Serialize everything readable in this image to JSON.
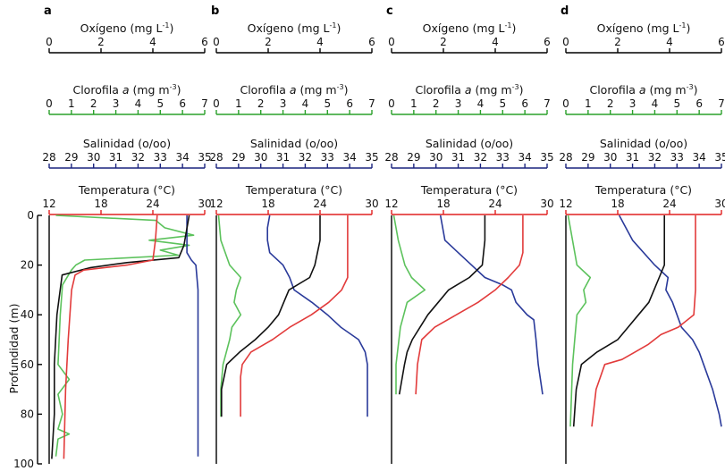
{
  "chart_data": {
    "type": "line",
    "depth_axis": {
      "label": "Profundidad (m)",
      "range": [
        0,
        100
      ],
      "ticks": [
        0,
        20,
        40,
        60,
        80,
        100
      ],
      "inverted": true
    },
    "axes": [
      {
        "key": "oxygen",
        "label": "Oxígeno (mg  L",
        "label_sup": "-1",
        "label_tail": ")",
        "range": [
          0,
          6
        ],
        "ticks": [
          0,
          2,
          4,
          6
        ],
        "color": "#000000"
      },
      {
        "key": "chlorophyll",
        "label": "Clorofila ",
        "label_italic": "a",
        "label_mid": " (mg  m",
        "label_sup": "-3",
        "label_tail": ")",
        "range": [
          0,
          7
        ],
        "ticks": [
          0,
          1,
          2,
          3,
          4,
          5,
          6,
          7
        ],
        "color": "#2aa02a"
      },
      {
        "key": "salinity",
        "label": "Salinidad (o/oo)",
        "range": [
          28,
          35
        ],
        "ticks": [
          28,
          29,
          30,
          31,
          32,
          33,
          34,
          35
        ],
        "color": "#1a237e"
      },
      {
        "key": "temperature",
        "label": "Temperatura (°C)",
        "range": [
          12,
          30
        ],
        "ticks": [
          12,
          18,
          24,
          30
        ],
        "color": "#e02020"
      }
    ],
    "series_colors": {
      "temperature": "#e23b3b",
      "chlorophyll": "#5cc25c",
      "salinity": "#2a3a9a",
      "oxygen": "#111111"
    },
    "panels": [
      {
        "letter": "a",
        "temperature": [
          [
            0,
            24.5
          ],
          [
            10,
            24.3
          ],
          [
            18,
            24.0
          ],
          [
            20,
            21
          ],
          [
            22,
            16
          ],
          [
            24,
            15
          ],
          [
            30,
            14.6
          ],
          [
            50,
            14.2
          ],
          [
            70,
            13.9
          ],
          [
            98,
            13.7
          ]
        ],
        "salinity": [
          [
            0,
            34.2
          ],
          [
            15,
            34.2
          ],
          [
            18,
            34.4
          ],
          [
            20,
            34.6
          ],
          [
            30,
            34.7
          ],
          [
            60,
            34.7
          ],
          [
            97,
            34.7
          ]
        ],
        "chlorophyll": [
          [
            0,
            0.3
          ],
          [
            2,
            4.8
          ],
          [
            5,
            5.2
          ],
          [
            8,
            6.5
          ],
          [
            10,
            4.5
          ],
          [
            12,
            6.3
          ],
          [
            14,
            5.0
          ],
          [
            16,
            5.8
          ],
          [
            18,
            1.6
          ],
          [
            20,
            1.2
          ],
          [
            22,
            1.0
          ],
          [
            28,
            0.6
          ],
          [
            40,
            0.5
          ],
          [
            60,
            0.4
          ],
          [
            66,
            0.9
          ],
          [
            72,
            0.4
          ],
          [
            80,
            0.6
          ],
          [
            86,
            0.4
          ],
          [
            88,
            0.9
          ],
          [
            90,
            0.4
          ],
          [
            97,
            0.3
          ]
        ],
        "oxygen": [
          [
            0,
            5.4
          ],
          [
            12,
            5.2
          ],
          [
            17,
            5.0
          ],
          [
            19,
            3.0
          ],
          [
            21,
            1.6
          ],
          [
            24,
            0.5
          ],
          [
            40,
            0.3
          ],
          [
            60,
            0.2
          ],
          [
            80,
            0.2
          ],
          [
            98,
            0.1
          ]
        ]
      },
      {
        "letter": "b",
        "temperature": [
          [
            0,
            27.2
          ],
          [
            25,
            27.2
          ],
          [
            30,
            26.5
          ],
          [
            35,
            25.0
          ],
          [
            40,
            23.0
          ],
          [
            45,
            20.5
          ],
          [
            50,
            18.5
          ],
          [
            55,
            16.0
          ],
          [
            60,
            15.0
          ],
          [
            65,
            14.8
          ],
          [
            81,
            14.8
          ]
        ],
        "salinity": [
          [
            0,
            30.4
          ],
          [
            5,
            30.3
          ],
          [
            10,
            30.3
          ],
          [
            15,
            30.4
          ],
          [
            20,
            31.0
          ],
          [
            25,
            31.3
          ],
          [
            30,
            31.5
          ],
          [
            35,
            32.3
          ],
          [
            40,
            33.0
          ],
          [
            45,
            33.6
          ],
          [
            50,
            34.4
          ],
          [
            55,
            34.7
          ],
          [
            60,
            34.8
          ],
          [
            81,
            34.8
          ]
        ],
        "chlorophyll": [
          [
            0,
            0.1
          ],
          [
            10,
            0.2
          ],
          [
            20,
            0.6
          ],
          [
            25,
            1.1
          ],
          [
            30,
            0.9
          ],
          [
            35,
            0.8
          ],
          [
            40,
            1.1
          ],
          [
            45,
            0.7
          ],
          [
            50,
            0.6
          ],
          [
            60,
            0.3
          ],
          [
            70,
            0.2
          ],
          [
            81,
            0.2
          ]
        ],
        "oxygen": [
          [
            0,
            4.0
          ],
          [
            10,
            4.0
          ],
          [
            20,
            3.8
          ],
          [
            25,
            3.6
          ],
          [
            30,
            2.8
          ],
          [
            35,
            2.6
          ],
          [
            40,
            2.4
          ],
          [
            45,
            2.0
          ],
          [
            50,
            1.5
          ],
          [
            55,
            0.9
          ],
          [
            60,
            0.4
          ],
          [
            70,
            0.2
          ],
          [
            81,
            0.2
          ]
        ]
      },
      {
        "letter": "c",
        "temperature": [
          [
            0,
            27.2
          ],
          [
            15,
            27.2
          ],
          [
            20,
            26.8
          ],
          [
            25,
            25.5
          ],
          [
            30,
            24.0
          ],
          [
            35,
            22.0
          ],
          [
            40,
            19.5
          ],
          [
            45,
            17.0
          ],
          [
            50,
            15.5
          ],
          [
            60,
            15.0
          ],
          [
            72,
            14.8
          ]
        ],
        "salinity": [
          [
            0,
            30.2
          ],
          [
            10,
            30.4
          ],
          [
            20,
            31.6
          ],
          [
            25,
            32.2
          ],
          [
            28,
            33.0
          ],
          [
            30,
            33.4
          ],
          [
            35,
            33.6
          ],
          [
            40,
            34.1
          ],
          [
            42,
            34.4
          ],
          [
            50,
            34.5
          ],
          [
            60,
            34.6
          ],
          [
            72,
            34.8
          ]
        ],
        "chlorophyll": [
          [
            0,
            0.1
          ],
          [
            10,
            0.3
          ],
          [
            20,
            0.6
          ],
          [
            25,
            0.9
          ],
          [
            30,
            1.5
          ],
          [
            35,
            0.7
          ],
          [
            45,
            0.4
          ],
          [
            60,
            0.2
          ],
          [
            72,
            0.2
          ]
        ],
        "oxygen": [
          [
            0,
            3.6
          ],
          [
            10,
            3.6
          ],
          [
            20,
            3.5
          ],
          [
            25,
            3.0
          ],
          [
            30,
            2.2
          ],
          [
            35,
            1.8
          ],
          [
            40,
            1.4
          ],
          [
            45,
            1.1
          ],
          [
            50,
            0.8
          ],
          [
            55,
            0.6
          ],
          [
            60,
            0.5
          ],
          [
            72,
            0.3
          ]
        ]
      },
      {
        "letter": "d",
        "temperature": [
          [
            0,
            27.0
          ],
          [
            20,
            27.0
          ],
          [
            30,
            27.0
          ],
          [
            40,
            26.8
          ],
          [
            45,
            25.0
          ],
          [
            48,
            23.0
          ],
          [
            52,
            21.5
          ],
          [
            55,
            20.0
          ],
          [
            58,
            18.5
          ],
          [
            60,
            16.5
          ],
          [
            70,
            15.5
          ],
          [
            85,
            15.0
          ]
        ],
        "salinity": [
          [
            0,
            30.4
          ],
          [
            10,
            31.0
          ],
          [
            20,
            32.0
          ],
          [
            25,
            32.6
          ],
          [
            30,
            32.5
          ],
          [
            35,
            32.8
          ],
          [
            40,
            33.0
          ],
          [
            45,
            33.2
          ],
          [
            50,
            33.7
          ],
          [
            55,
            34.0
          ],
          [
            60,
            34.2
          ],
          [
            70,
            34.6
          ],
          [
            80,
            34.9
          ],
          [
            85,
            35.0
          ]
        ],
        "chlorophyll": [
          [
            0,
            0.1
          ],
          [
            20,
            0.5
          ],
          [
            25,
            1.1
          ],
          [
            30,
            0.8
          ],
          [
            35,
            0.9
          ],
          [
            40,
            0.5
          ],
          [
            50,
            0.4
          ],
          [
            60,
            0.3
          ],
          [
            85,
            0.2
          ]
        ],
        "oxygen": [
          [
            0,
            3.8
          ],
          [
            20,
            3.8
          ],
          [
            25,
            3.6
          ],
          [
            30,
            3.4
          ],
          [
            35,
            3.2
          ],
          [
            40,
            2.8
          ],
          [
            45,
            2.4
          ],
          [
            50,
            2.0
          ],
          [
            55,
            1.2
          ],
          [
            60,
            0.6
          ],
          [
            70,
            0.4
          ],
          [
            85,
            0.3
          ]
        ]
      }
    ]
  }
}
